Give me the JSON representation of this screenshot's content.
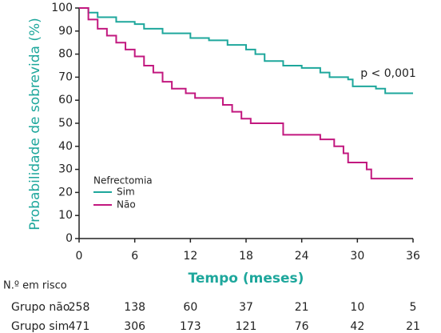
{
  "chart_data": {
    "type": "line",
    "annotation": "p < 0,001",
    "ylabel": "Probabilidade de sobrevida (%)",
    "xlabel": "Tempo (meses)",
    "legend_title": "Nefrectomia",
    "legend": "lower left",
    "xlim": [
      0,
      36
    ],
    "xticks": [
      0,
      6,
      12,
      18,
      24,
      30,
      36
    ],
    "ylim": [
      0,
      100
    ],
    "yticks": [
      0,
      10,
      20,
      30,
      40,
      50,
      60,
      70,
      80,
      90,
      100
    ],
    "series": [
      {
        "name": "Sim",
        "color": "#1ea79c",
        "x": [
          0,
          1,
          1,
          2,
          2,
          4,
          4,
          6,
          6,
          7,
          7,
          9,
          9,
          12,
          12,
          14,
          14,
          16,
          16,
          18,
          18,
          19,
          19,
          20,
          20,
          22,
          22,
          24,
          24,
          26,
          26,
          27,
          27,
          29,
          29,
          29.5,
          29.5,
          32,
          32,
          33,
          33,
          36
        ],
        "values": [
          100,
          100,
          98,
          98,
          96,
          96,
          94,
          94,
          93,
          93,
          91,
          91,
          89,
          89,
          87,
          87,
          86,
          86,
          84,
          84,
          82,
          82,
          80,
          80,
          77,
          77,
          75,
          75,
          74,
          74,
          72,
          72,
          70,
          70,
          69,
          69,
          66,
          66,
          65,
          65,
          63,
          63
        ]
      },
      {
        "name": "Não",
        "color": "#c2187f",
        "x": [
          0,
          1,
          1,
          2,
          2,
          3,
          3,
          4,
          4,
          5,
          5,
          6,
          6,
          7,
          7,
          8,
          8,
          9,
          9,
          10,
          10,
          11.5,
          11.5,
          12.5,
          12.5,
          15.5,
          15.5,
          16.5,
          16.5,
          17.5,
          17.5,
          18.5,
          18.5,
          22,
          22,
          26,
          26,
          27.5,
          27.5,
          28.5,
          28.5,
          29,
          29,
          31,
          31,
          31.5,
          31.5,
          36
        ],
        "values": [
          100,
          100,
          95,
          95,
          91,
          91,
          88,
          88,
          85,
          85,
          82,
          82,
          79,
          79,
          75,
          75,
          72,
          72,
          68,
          68,
          65,
          65,
          63,
          63,
          61,
          61,
          58,
          58,
          55,
          55,
          52,
          52,
          50,
          50,
          45,
          45,
          43,
          43,
          40,
          40,
          37,
          37,
          33,
          33,
          30,
          30,
          26,
          26
        ]
      }
    ],
    "risk_table": {
      "title": "N.º em risco",
      "rows": [
        {
          "label": "Grupo não",
          "values": [
            258,
            138,
            60,
            37,
            21,
            10,
            5
          ]
        },
        {
          "label": "Grupo sim",
          "values": [
            471,
            306,
            173,
            121,
            76,
            42,
            21
          ]
        }
      ]
    }
  }
}
